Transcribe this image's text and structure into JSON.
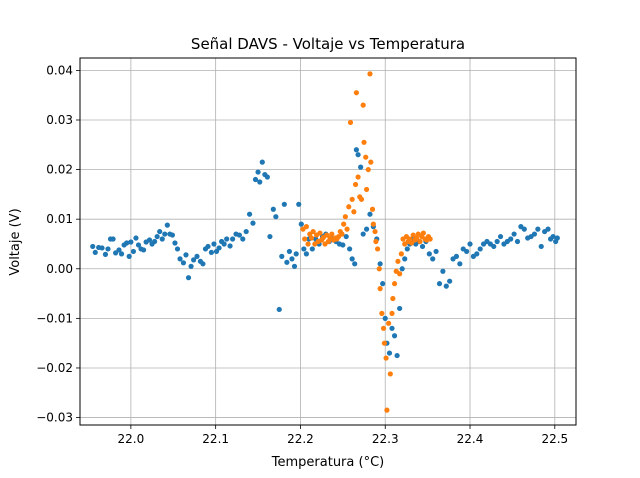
{
  "chart_data": {
    "type": "scatter",
    "title": "Señal DAVS - Voltaje vs Temperatura",
    "xlabel": "Temperatura (°C)",
    "ylabel": "Voltaje (V)",
    "xlim": [
      21.94,
      22.525
    ],
    "ylim": [
      -0.0315,
      0.0425
    ],
    "xticks": [
      22.0,
      22.1,
      22.2,
      22.3,
      22.4,
      22.5
    ],
    "xtick_labels": [
      "22.0",
      "22.1",
      "22.2",
      "22.3",
      "22.4",
      "22.5"
    ],
    "yticks": [
      -0.03,
      -0.02,
      -0.01,
      0.0,
      0.01,
      0.02,
      0.03,
      0.04
    ],
    "ytick_labels": [
      "−0.03",
      "−0.02",
      "−0.01",
      "0.00",
      "0.01",
      "0.02",
      "0.03",
      "0.04"
    ],
    "grid": true,
    "legend": "none",
    "colors": {
      "series_1": "#1f77b4",
      "series_2": "#ff7f0e",
      "grid": "#b0b0b0"
    },
    "series": [
      {
        "color": "#1f77b4",
        "points": [
          [
            21.955,
            0.0045
          ],
          [
            21.958,
            0.0033
          ],
          [
            21.962,
            0.0043
          ],
          [
            21.966,
            0.0042
          ],
          [
            21.97,
            0.0029
          ],
          [
            21.973,
            0.004
          ],
          [
            21.976,
            0.006
          ],
          [
            21.979,
            0.006
          ],
          [
            21.982,
            0.0032
          ],
          [
            21.986,
            0.0038
          ],
          [
            21.989,
            0.003
          ],
          [
            21.992,
            0.0048
          ],
          [
            21.995,
            0.0052
          ],
          [
            21.998,
            0.0025
          ],
          [
            22.0,
            0.0054
          ],
          [
            22.003,
            0.0035
          ],
          [
            22.006,
            0.0062
          ],
          [
            22.009,
            0.0048
          ],
          [
            22.012,
            0.004
          ],
          [
            22.015,
            0.0038
          ],
          [
            22.018,
            0.0054
          ],
          [
            22.022,
            0.0058
          ],
          [
            22.025,
            0.005
          ],
          [
            22.028,
            0.0055
          ],
          [
            22.031,
            0.0065
          ],
          [
            22.034,
            0.0075
          ],
          [
            22.037,
            0.006
          ],
          [
            22.04,
            0.007
          ],
          [
            22.043,
            0.0088
          ],
          [
            22.046,
            0.007
          ],
          [
            22.049,
            0.0068
          ],
          [
            22.052,
            0.0052
          ],
          [
            22.055,
            0.004
          ],
          [
            22.058,
            0.002
          ],
          [
            22.062,
            0.0012
          ],
          [
            22.065,
            0.0028
          ],
          [
            22.068,
            -0.0018
          ],
          [
            22.071,
            0.0005
          ],
          [
            22.074,
            0.0018
          ],
          [
            22.078,
            0.0025
          ],
          [
            22.082,
            0.0015
          ],
          [
            22.085,
            0.001
          ],
          [
            22.088,
            0.004
          ],
          [
            22.091,
            0.0045
          ],
          [
            22.095,
            0.0033
          ],
          [
            22.098,
            0.005
          ],
          [
            22.101,
            0.0035
          ],
          [
            22.104,
            0.0042
          ],
          [
            22.107,
            0.0055
          ],
          [
            22.11,
            0.005
          ],
          [
            22.113,
            0.006
          ],
          [
            22.117,
            0.0046
          ],
          [
            22.12,
            0.006
          ],
          [
            22.124,
            0.007
          ],
          [
            22.128,
            0.0068
          ],
          [
            22.132,
            0.006
          ],
          [
            22.136,
            0.0075
          ],
          [
            22.14,
            0.011
          ],
          [
            22.144,
            0.0092
          ],
          [
            22.147,
            0.018
          ],
          [
            22.15,
            0.0195
          ],
          [
            22.152,
            0.0175
          ],
          [
            22.155,
            0.0215
          ],
          [
            22.158,
            0.019
          ],
          [
            22.161,
            0.0185
          ],
          [
            22.164,
            0.0065
          ],
          [
            22.168,
            0.012
          ],
          [
            22.171,
            0.0105
          ],
          [
            22.175,
            -0.0082
          ],
          [
            22.178,
            0.0025
          ],
          [
            22.181,
            0.013
          ],
          [
            22.184,
            0.0013
          ],
          [
            22.187,
            0.0035
          ],
          [
            22.19,
            0.002
          ],
          [
            22.193,
            0.0005
          ],
          [
            22.195,
            0.003
          ],
          [
            22.198,
            0.013
          ],
          [
            22.201,
            0.009
          ],
          [
            22.204,
            0.004
          ],
          [
            22.207,
            0.003
          ],
          [
            22.21,
            0.006
          ],
          [
            22.214,
            0.004
          ],
          [
            22.218,
            0.006
          ],
          [
            22.222,
            0.005
          ],
          [
            22.226,
            0.0065
          ],
          [
            22.23,
            0.007
          ],
          [
            22.234,
            0.0055
          ],
          [
            22.238,
            0.006
          ],
          [
            22.242,
            0.0055
          ],
          [
            22.246,
            0.005
          ],
          [
            22.25,
            0.0048
          ],
          [
            22.254,
            0.0065
          ],
          [
            22.258,
            0.004
          ],
          [
            22.261,
            0.002
          ],
          [
            22.264,
            0.001
          ],
          [
            22.266,
            0.024
          ],
          [
            22.268,
            0.023
          ],
          [
            22.271,
            0.0205
          ],
          [
            22.274,
            0.007
          ],
          [
            22.278,
            0.008
          ],
          [
            22.282,
            0.011
          ],
          [
            22.286,
            0.0085
          ],
          [
            22.29,
            0.006
          ],
          [
            22.294,
            0.001
          ],
          [
            22.297,
            -0.003
          ],
          [
            22.3,
            -0.01
          ],
          [
            22.302,
            -0.015
          ],
          [
            22.305,
            -0.017
          ],
          [
            22.308,
            -0.012
          ],
          [
            22.311,
            -0.0135
          ],
          [
            22.314,
            -0.0175
          ],
          [
            22.317,
            -0.008
          ],
          [
            22.32,
            0.0
          ],
          [
            22.323,
            0.002
          ],
          [
            22.326,
            0.004
          ],
          [
            22.329,
            0.005
          ],
          [
            22.332,
            0.006
          ],
          [
            22.336,
            0.005
          ],
          [
            22.34,
            0.0055
          ],
          [
            22.344,
            0.0045
          ],
          [
            22.348,
            0.0055
          ],
          [
            22.352,
            0.003
          ],
          [
            22.356,
            0.002
          ],
          [
            22.36,
            0.0035
          ],
          [
            22.364,
            -0.003
          ],
          [
            22.368,
            -0.0005
          ],
          [
            22.372,
            -0.0035
          ],
          [
            22.376,
            -0.0025
          ],
          [
            22.38,
            0.002
          ],
          [
            22.384,
            0.0025
          ],
          [
            22.388,
            0.001
          ],
          [
            22.392,
            0.004
          ],
          [
            22.396,
            0.0035
          ],
          [
            22.4,
            0.005
          ],
          [
            22.404,
            0.0025
          ],
          [
            22.408,
            0.003
          ],
          [
            22.412,
            0.004
          ],
          [
            22.416,
            0.005
          ],
          [
            22.42,
            0.0055
          ],
          [
            22.424,
            0.005
          ],
          [
            22.428,
            0.0045
          ],
          [
            22.432,
            0.0055
          ],
          [
            22.436,
            0.0065
          ],
          [
            22.44,
            0.005
          ],
          [
            22.444,
            0.0055
          ],
          [
            22.448,
            0.006
          ],
          [
            22.452,
            0.007
          ],
          [
            22.456,
            0.0055
          ],
          [
            22.46,
            0.0085
          ],
          [
            22.464,
            0.008
          ],
          [
            22.468,
            0.0062
          ],
          [
            22.472,
            0.0065
          ],
          [
            22.476,
            0.007
          ],
          [
            22.48,
            0.008
          ],
          [
            22.484,
            0.0045
          ],
          [
            22.488,
            0.0075
          ],
          [
            22.492,
            0.008
          ],
          [
            22.495,
            0.006
          ],
          [
            22.498,
            0.0065
          ],
          [
            22.501,
            0.0055
          ],
          [
            22.503,
            0.0062
          ]
        ]
      },
      {
        "color": "#ff7f0e",
        "points": [
          [
            22.203,
            0.008
          ],
          [
            22.205,
            0.006
          ],
          [
            22.207,
            0.0085
          ],
          [
            22.209,
            0.005
          ],
          [
            22.211,
            0.007
          ],
          [
            22.213,
            0.0062
          ],
          [
            22.215,
            0.0075
          ],
          [
            22.217,
            0.005
          ],
          [
            22.219,
            0.0068
          ],
          [
            22.221,
            0.0055
          ],
          [
            22.223,
            0.0072
          ],
          [
            22.225,
            0.0058
          ],
          [
            22.227,
            0.0063
          ],
          [
            22.229,
            0.005
          ],
          [
            22.231,
            0.0068
          ],
          [
            22.233,
            0.0055
          ],
          [
            22.235,
            0.0062
          ],
          [
            22.237,
            0.007
          ],
          [
            22.239,
            0.0058
          ],
          [
            22.241,
            0.0062
          ],
          [
            22.243,
            0.006
          ],
          [
            22.245,
            0.0065
          ],
          [
            22.247,
            0.0075
          ],
          [
            22.249,
            0.007
          ],
          [
            22.251,
            0.009
          ],
          [
            22.253,
            0.0105
          ],
          [
            22.255,
            0.008
          ],
          [
            22.257,
            0.0125
          ],
          [
            22.259,
            0.0295
          ],
          [
            22.261,
            0.014
          ],
          [
            22.263,
            0.0115
          ],
          [
            22.265,
            0.017
          ],
          [
            22.266,
            0.0355
          ],
          [
            22.268,
            0.0185
          ],
          [
            22.27,
            0.0145
          ],
          [
            22.272,
            0.014
          ],
          [
            22.274,
            0.033
          ],
          [
            22.275,
            0.0255
          ],
          [
            22.277,
            0.0225
          ],
          [
            22.278,
            0.016
          ],
          [
            22.28,
            0.02
          ],
          [
            22.282,
            0.0393
          ],
          [
            22.283,
            0.0215
          ],
          [
            22.285,
            0.012
          ],
          [
            22.286,
            0.009
          ],
          [
            22.288,
            0.0075
          ],
          [
            22.289,
            0.0055
          ],
          [
            22.291,
            0.004
          ],
          [
            22.293,
            0.0
          ],
          [
            22.294,
            -0.004
          ],
          [
            22.296,
            -0.009
          ],
          [
            22.298,
            -0.012
          ],
          [
            22.299,
            -0.015
          ],
          [
            22.301,
            -0.018
          ],
          [
            22.302,
            -0.0285
          ],
          [
            22.304,
            -0.011
          ],
          [
            22.306,
            -0.0212
          ],
          [
            22.308,
            -0.009
          ],
          [
            22.309,
            -0.006
          ],
          [
            22.311,
            -0.003
          ],
          [
            22.313,
            -0.0005
          ],
          [
            22.315,
            0.0015
          ],
          [
            22.317,
            -0.001
          ],
          [
            22.319,
            0.003
          ],
          [
            22.321,
            0.006
          ],
          [
            22.323,
            0.005
          ],
          [
            22.325,
            0.0065
          ],
          [
            22.327,
            0.0055
          ],
          [
            22.329,
            0.006
          ],
          [
            22.331,
            0.0052
          ],
          [
            22.333,
            0.0068
          ],
          [
            22.335,
            0.0058
          ],
          [
            22.337,
            0.0062
          ],
          [
            22.339,
            0.007
          ],
          [
            22.341,
            0.0055
          ],
          [
            22.343,
            0.0065
          ],
          [
            22.345,
            0.0072
          ],
          [
            22.347,
            0.006
          ],
          [
            22.349,
            0.0058
          ],
          [
            22.351,
            0.0065
          ],
          [
            22.353,
            0.006
          ]
        ]
      }
    ]
  }
}
